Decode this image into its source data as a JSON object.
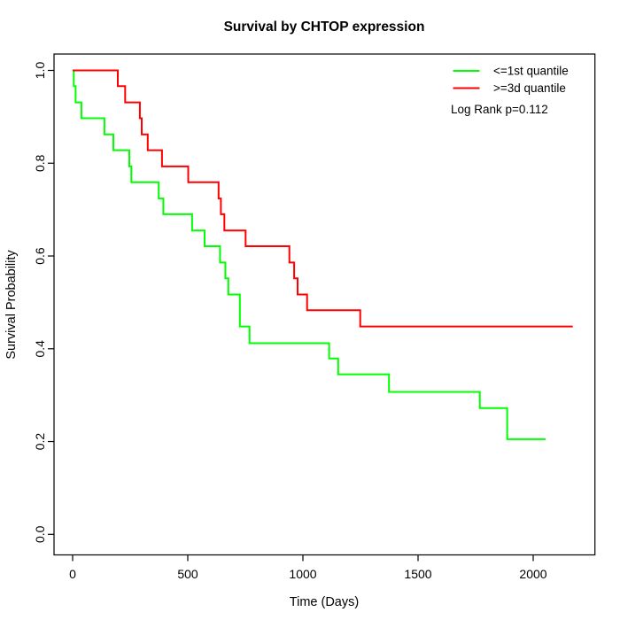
{
  "title": "Survival by CHTOP expression",
  "axes": {
    "x": {
      "label": "Time (Days)",
      "tick_labels": [
        "0",
        "500",
        "1000",
        "1500",
        "2000"
      ]
    },
    "y": {
      "label": "Survival Probability",
      "tick_labels": [
        "0.0",
        "0.2",
        "0.4",
        "0.6",
        "0.8",
        "1.0"
      ]
    }
  },
  "legend": {
    "entries": [
      {
        "label": "<=1st quantile",
        "color": "#00FF00"
      },
      {
        "label": ">=3d quantile",
        "color": "#FF0000"
      }
    ],
    "p_text": "Log Rank p=0.112"
  },
  "chart_data": {
    "type": "line",
    "subtype": "kaplan-meier-step",
    "title": "Survival by CHTOP expression",
    "xlabel": "Time (Days)",
    "ylabel": "Survival Probability",
    "xlim": [
      0,
      2200
    ],
    "ylim": [
      0.0,
      1.0
    ],
    "x_ticks": [
      0,
      500,
      1000,
      1500,
      2000
    ],
    "y_ticks": [
      0.0,
      0.2,
      0.4,
      0.6,
      0.8,
      1.0
    ],
    "grid": false,
    "legend_position": "top-right",
    "annotation": "Log Rank p=0.112",
    "line_width": 2,
    "series": [
      {
        "name": "<=1st quantile",
        "color": "#00FF00",
        "start": [
          0,
          1.0
        ],
        "steps": [
          [
            5,
            0.966
          ],
          [
            13,
            0.931
          ],
          [
            38,
            0.897
          ],
          [
            138,
            0.862
          ],
          [
            177,
            0.828
          ],
          [
            246,
            0.793
          ],
          [
            255,
            0.759
          ],
          [
            374,
            0.724
          ],
          [
            394,
            0.69
          ],
          [
            519,
            0.655
          ],
          [
            573,
            0.621
          ],
          [
            640,
            0.586
          ],
          [
            663,
            0.552
          ],
          [
            676,
            0.517
          ],
          [
            726,
            0.448
          ],
          [
            768,
            0.412
          ],
          [
            1114,
            0.379
          ],
          [
            1153,
            0.345
          ],
          [
            1374,
            0.307
          ],
          [
            1768,
            0.272
          ],
          [
            1887,
            0.205
          ]
        ],
        "end_time": 2054,
        "final_value": 0.205
      },
      {
        "name": ">=3d quantile",
        "color": "#FF0000",
        "start": [
          0,
          1.0
        ],
        "steps": [
          [
            196,
            0.966
          ],
          [
            228,
            0.931
          ],
          [
            292,
            0.897
          ],
          [
            300,
            0.862
          ],
          [
            326,
            0.828
          ],
          [
            388,
            0.793
          ],
          [
            502,
            0.759
          ],
          [
            634,
            0.724
          ],
          [
            644,
            0.69
          ],
          [
            659,
            0.655
          ],
          [
            751,
            0.621
          ],
          [
            941,
            0.586
          ],
          [
            962,
            0.552
          ],
          [
            977,
            0.517
          ],
          [
            1018,
            0.483
          ],
          [
            1249,
            0.448
          ]
        ],
        "end_time": 2172,
        "final_value": 0.448
      }
    ]
  }
}
